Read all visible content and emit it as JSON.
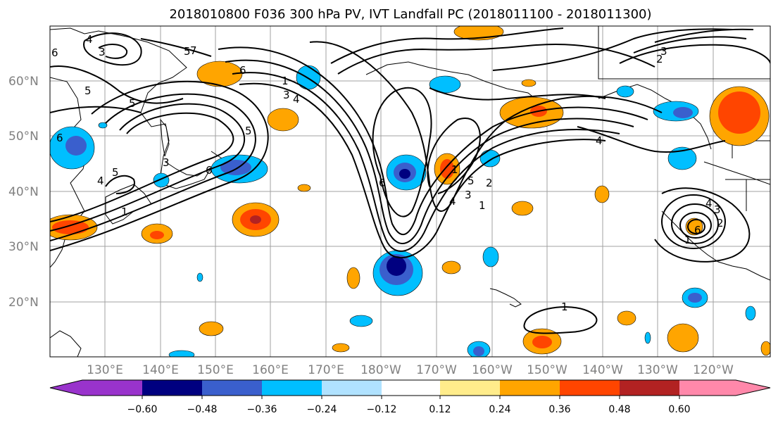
{
  "title": "2018010800 F036 300 hPa PV, IVT Landfall PC (2018011100 - 2018011300)",
  "lat_ticks": [
    "60°N",
    "50°N",
    "40°N",
    "30°N",
    "20°N"
  ],
  "lon_ticks": [
    "130°E",
    "140°E",
    "150°E",
    "160°E",
    "170°E",
    "180°W",
    "170°W",
    "160°W",
    "150°W",
    "140°W",
    "130°W",
    "120°W"
  ],
  "colorbar": {
    "colors": [
      "#9933cc",
      "#000080",
      "#3a5fcd",
      "#00bfff",
      "#b0e2ff",
      "#ffffff",
      "#ffec8b",
      "#ffa500",
      "#ff4500",
      "#b22222",
      "#ff88aa"
    ],
    "tick_labels": [
      "−0.60",
      "−0.48",
      "−0.36",
      "−0.24",
      "−0.12",
      "0.12",
      "0.24",
      "0.36",
      "0.48",
      "0.60"
    ]
  },
  "contour_labels": [
    "5",
    "5",
    "4",
    "3",
    "6",
    "6",
    "4",
    "5",
    "3",
    "6",
    "3",
    "4",
    "1",
    "5",
    "1",
    "6",
    "5",
    "6",
    "1",
    "4",
    "4",
    "3",
    "3",
    "2",
    "5",
    "7",
    "6",
    "4",
    "3",
    "2",
    "1",
    "1",
    "1",
    "2"
  ]
}
